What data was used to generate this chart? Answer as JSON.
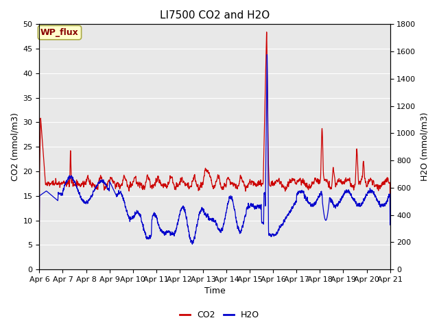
{
  "title": "LI7500 CO2 and H2O",
  "xlabel": "Time",
  "ylabel_left": "CO2 (mmol/m3)",
  "ylabel_right": "H2O (mmol/m3)",
  "ylim_left": [
    0,
    50
  ],
  "ylim_right": [
    0,
    1800
  ],
  "yticks_left": [
    0,
    5,
    10,
    15,
    20,
    25,
    30,
    35,
    40,
    45,
    50
  ],
  "yticks_right": [
    0,
    200,
    400,
    600,
    800,
    1000,
    1200,
    1400,
    1600,
    1800
  ],
  "xtick_labels": [
    "Apr 6",
    "Apr 7",
    "Apr 8",
    "Apr 9",
    "Apr 10",
    "Apr 11",
    "Apr 12",
    "Apr 13",
    "Apr 14",
    "Apr 15",
    "Apr 16",
    "Apr 17",
    "Apr 18",
    "Apr 19",
    "Apr 20",
    "Apr 21"
  ],
  "co2_color": "#cc0000",
  "h2o_color": "#0000cc",
  "background_color": "#e8e8e8",
  "grid_color": "#ffffff",
  "annotation_text": "WP_flux",
  "title_fontsize": 11,
  "axis_fontsize": 9,
  "tick_fontsize": 8,
  "legend_fontsize": 9,
  "line_width": 0.9
}
